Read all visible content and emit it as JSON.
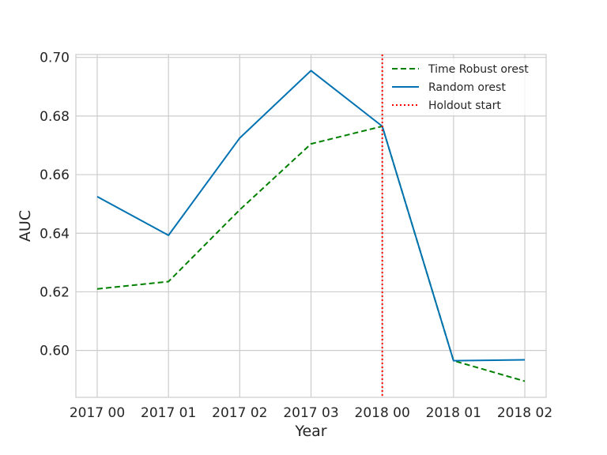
{
  "chart_data": {
    "type": "line",
    "title": "",
    "xlabel": "Year",
    "ylabel": "AUC",
    "categories": [
      "2017 00",
      "2017 01",
      "2017 02",
      "2017 03",
      "2018 00",
      "2018 01",
      "2018 02"
    ],
    "ylim": [
      0.584,
      0.701
    ],
    "yticks": [
      "0.60",
      "0.62",
      "0.64",
      "0.66",
      "0.68",
      "0.70"
    ],
    "grid": true,
    "legend_position": "top-right",
    "series": [
      {
        "name": "Time Robust   orest",
        "values": [
          0.621,
          0.6235,
          0.648,
          0.6705,
          0.6765,
          0.5965,
          0.5895
        ],
        "color": "#008000",
        "style": "dashed"
      },
      {
        "name": "Random   orest",
        "values": [
          0.6525,
          0.6393,
          0.6725,
          0.6955,
          0.6765,
          0.5965,
          0.5968
        ],
        "color": "#0072B2",
        "style": "solid"
      }
    ],
    "vline": {
      "name": "Holdout start",
      "x": "2018 00",
      "color": "#ff0000",
      "style": "dotted"
    }
  }
}
